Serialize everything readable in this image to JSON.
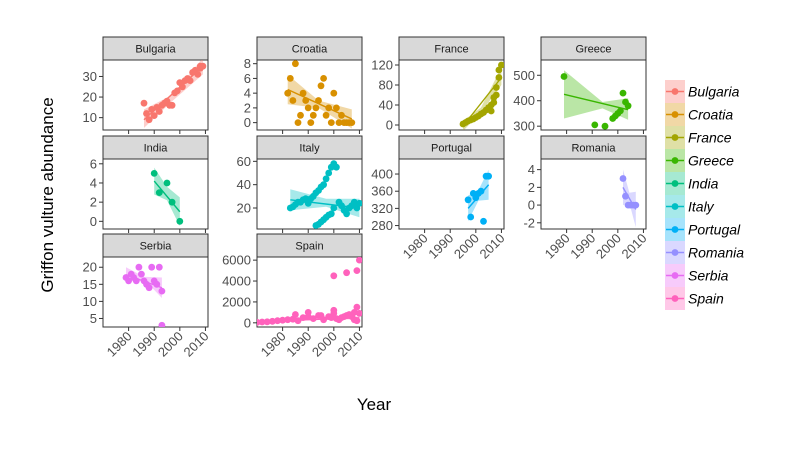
{
  "chart_data": {
    "type": "scatter",
    "title": "",
    "xlabel": "Year",
    "ylabel": "Griffon vulture abundance",
    "xlim": [
      1970,
      2011
    ],
    "x_ticks": [
      1980,
      1990,
      2000,
      2010
    ],
    "facet_order": [
      "Bulgaria",
      "Croatia",
      "France",
      "Greece",
      "India",
      "Italy",
      "Portugal",
      "Romania",
      "Serbia",
      "Spain"
    ],
    "legend_position": "right",
    "panels": [
      {
        "name": "Bulgaria",
        "color": "#F8766D",
        "ylim": [
          4,
          38
        ],
        "y_ticks": [
          10,
          20,
          30
        ],
        "x": [
          1986,
          1987,
          1988,
          1989,
          1990,
          1991,
          1992,
          1993,
          1994,
          1995,
          1996,
          1997,
          1998,
          1999,
          2000,
          2001,
          2002,
          2003,
          2004,
          2005,
          2006,
          2007,
          2008,
          2008,
          2009
        ],
        "y": [
          17,
          12,
          9,
          14,
          11,
          15,
          13,
          16,
          17,
          18,
          16,
          16,
          22,
          23,
          27,
          25,
          28,
          29,
          28,
          32,
          33,
          31,
          35,
          34,
          35
        ],
        "fit": [
          [
            1986,
            9
          ],
          [
            2009,
            35
          ]
        ],
        "band": [
          [
            1986,
            5,
            14
          ],
          [
            1997,
            18,
            21
          ],
          [
            2009,
            31,
            39
          ]
        ]
      },
      {
        "name": "Croatia",
        "color": "#D89000",
        "ylim": [
          -1,
          8.5
        ],
        "y_ticks": [
          0,
          2,
          4,
          6,
          8
        ],
        "x": [
          1982,
          1983,
          1984,
          1985,
          1986,
          1987,
          1988,
          1989,
          1990,
          1991,
          1992,
          1993,
          1994,
          1995,
          1996,
          1997,
          1998,
          1999,
          2000,
          2001,
          2002,
          2003,
          2004,
          2005,
          2006,
          2007
        ],
        "y": [
          4,
          6,
          3,
          8,
          0,
          1,
          4,
          3,
          2,
          0,
          1,
          2,
          3,
          5,
          6,
          1,
          2,
          0,
          4,
          2,
          0,
          1,
          0,
          0,
          0,
          0
        ],
        "fit": [
          [
            1982,
            4.5
          ],
          [
            2007,
            0.5
          ]
        ],
        "band": [
          [
            1982,
            2.5,
            6.5
          ],
          [
            1994,
            2,
            3
          ],
          [
            2007,
            -0.8,
            1.8
          ]
        ]
      },
      {
        "name": "France",
        "color": "#A3A500",
        "ylim": [
          -10,
          130
        ],
        "y_ticks": [
          0,
          40,
          80,
          120
        ],
        "x": [
          1995,
          1996,
          1997,
          1998,
          1999,
          2000,
          2001,
          2002,
          2003,
          2004,
          2005,
          2006,
          2006,
          2007,
          2007,
          2008,
          2008,
          2009,
          2009,
          2010
        ],
        "y": [
          2,
          5,
          8,
          10,
          12,
          15,
          18,
          22,
          25,
          30,
          35,
          28,
          40,
          45,
          55,
          60,
          75,
          95,
          110,
          120
        ],
        "fit": [
          [
            1995,
            -2
          ],
          [
            2010,
            95
          ]
        ],
        "band": [
          [
            1995,
            -12,
            8
          ],
          [
            2002,
            25,
            35
          ],
          [
            2010,
            80,
            115
          ]
        ]
      },
      {
        "name": "Greece",
        "color": "#39B600",
        "ylim": [
          285,
          560
        ],
        "y_ticks": [
          300,
          400,
          500
        ],
        "x": [
          1979,
          1991,
          1995,
          1998,
          1999,
          2000,
          2001,
          2002,
          2003,
          2004
        ],
        "y": [
          495,
          305,
          300,
          330,
          340,
          350,
          360,
          430,
          395,
          380
        ],
        "fit": [
          [
            1979,
            425
          ],
          [
            2004,
            365
          ]
        ],
        "band": [
          [
            1979,
            330,
            520
          ],
          [
            1994,
            370,
            395
          ],
          [
            2004,
            325,
            410
          ]
        ]
      },
      {
        "name": "India",
        "color": "#00BF7D",
        "ylim": [
          -0.8,
          6.5
        ],
        "y_ticks": [
          0,
          2,
          4,
          6
        ],
        "x": [
          1990,
          1992,
          1995,
          1997,
          2000
        ],
        "y": [
          5,
          3,
          4,
          2,
          0
        ],
        "fit": [
          [
            1990,
            4.2
          ],
          [
            2000,
            1
          ]
        ],
        "band": [
          [
            1990,
            2.8,
            5.6
          ],
          [
            1995,
            2.2,
            3.6
          ],
          [
            2000,
            -0.5,
            2.5
          ]
        ]
      },
      {
        "name": "Italy",
        "color": "#00BFC4",
        "ylim": [
          2,
          62
        ],
        "y_ticks": [
          20,
          40,
          60
        ],
        "x": [
          1983,
          1984,
          1985,
          1986,
          1987,
          1988,
          1989,
          1990,
          1991,
          1992,
          1993,
          1993,
          1994,
          1994,
          1995,
          1995,
          1996,
          1996,
          1997,
          1997,
          1998,
          1998,
          1999,
          1999,
          2000,
          2000,
          2001,
          2002,
          2003,
          2004,
          2005,
          2006,
          2007,
          2008,
          2009,
          2010
        ],
        "y": [
          20,
          21,
          23,
          25,
          25,
          27,
          28,
          24,
          28,
          30,
          33,
          5,
          35,
          6,
          38,
          8,
          40,
          10,
          45,
          12,
          50,
          14,
          55,
          15,
          58,
          20,
          55,
          25,
          22,
          18,
          15,
          20,
          22,
          25,
          20,
          24
        ],
        "fit": [
          [
            1983,
            27
          ],
          [
            2010,
            20
          ]
        ],
        "band": [
          [
            1983,
            18,
            36
          ],
          [
            1997,
            21,
            28
          ],
          [
            2010,
            12,
            28
          ]
        ]
      },
      {
        "name": "Portugal",
        "color": "#00B0F6",
        "ylim": [
          272,
          435
        ],
        "y_ticks": [
          280,
          320,
          360,
          400
        ],
        "x": [
          1997,
          1998,
          1999,
          2000,
          2001,
          2002,
          2003,
          2004,
          2005
        ],
        "y": [
          340,
          300,
          355,
          345,
          355,
          360,
          290,
          395,
          395
        ],
        "fit": [
          [
            1997,
            320
          ],
          [
            2005,
            375
          ]
        ],
        "band": [
          [
            1997,
            290,
            350
          ],
          [
            2001,
            338,
            362
          ],
          [
            2005,
            340,
            410
          ]
        ]
      },
      {
        "name": "Romania",
        "color": "#9590FF",
        "ylim": [
          -2.7,
          5.2
        ],
        "y_ticks": [
          -2,
          0,
          2,
          4
        ],
        "x": [
          2002,
          2003,
          2004,
          2005,
          2006,
          2007
        ],
        "y": [
          3,
          1,
          0,
          0,
          0,
          0
        ],
        "fit": [
          [
            2002,
            2
          ],
          [
            2007,
            -0.5
          ]
        ],
        "band": [
          [
            2002,
            0,
            4
          ],
          [
            2004.5,
            0.2,
            1.4
          ],
          [
            2007,
            -2.5,
            1.5
          ]
        ]
      },
      {
        "name": "Serbia",
        "color": "#E76BF3",
        "ylim": [
          2.5,
          23
        ],
        "y_ticks": [
          5,
          10,
          15,
          20
        ],
        "x": [
          1979,
          1980,
          1981,
          1982,
          1983,
          1984,
          1985,
          1986,
          1987,
          1988,
          1989,
          1990,
          1991,
          1992,
          1993,
          1993
        ],
        "y": [
          17,
          16,
          18,
          17,
          16,
          20,
          18,
          16,
          15,
          14,
          20,
          16,
          15,
          20,
          13,
          3
        ],
        "fit": [
          [
            1979,
            17.8
          ],
          [
            1993,
            14
          ]
        ],
        "band": [
          [
            1979,
            15.5,
            20
          ],
          [
            1986,
            16.5,
            17.2
          ],
          [
            1993,
            11,
            17
          ]
        ]
      },
      {
        "name": "Spain",
        "color": "#FF62BC",
        "ylim": [
          -400,
          6300
        ],
        "y_ticks": [
          0,
          2000,
          4000,
          6000
        ],
        "x": [
          1970,
          1972,
          1974,
          1976,
          1978,
          1980,
          1982,
          1984,
          1986,
          1988,
          1990,
          1992,
          1994,
          1996,
          1998,
          1999,
          2000,
          2001,
          2002,
          2003,
          2004,
          2005,
          2006,
          2007,
          2008,
          2009,
          2010,
          2000,
          2005,
          2008,
          2009,
          2009,
          2010,
          1985,
          1990,
          1995,
          2000
        ],
        "y": [
          50,
          80,
          100,
          150,
          200,
          250,
          300,
          350,
          200,
          500,
          600,
          400,
          700,
          300,
          600,
          500,
          900,
          400,
          300,
          500,
          600,
          700,
          800,
          600,
          1000,
          5000,
          6000,
          4500,
          4800,
          300,
          1500,
          200,
          900,
          800,
          1000,
          700,
          1200
        ],
        "fit": [
          [
            1970,
            120
          ],
          [
            2010,
            480
          ]
        ],
        "band": [
          [
            1970,
            0,
            250
          ],
          [
            1995,
            280,
            340
          ],
          [
            2010,
            350,
            620
          ]
        ]
      }
    ]
  }
}
